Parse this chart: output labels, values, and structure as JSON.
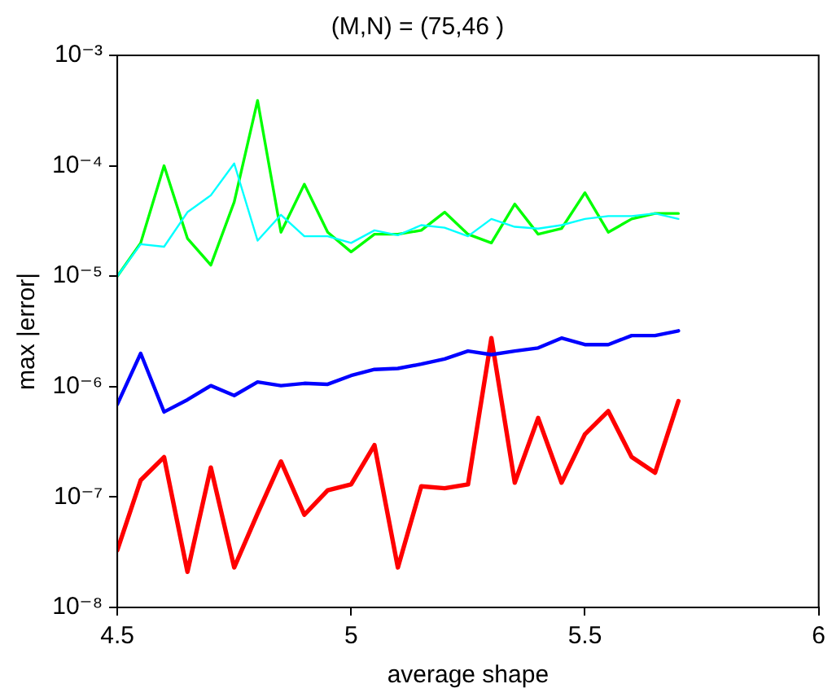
{
  "chart_data": {
    "type": "line",
    "title": "(M,N) = (75,46 )",
    "xlabel": "average shape",
    "ylabel": "max |error|",
    "log": "y",
    "x": [
      4.5,
      4.55,
      4.6,
      4.65,
      4.7,
      4.75,
      4.8,
      4.85,
      4.9,
      4.95,
      5.0,
      5.05,
      5.1,
      5.15,
      5.2,
      5.25,
      5.3,
      5.35,
      5.4,
      5.45,
      5.5,
      5.55,
      5.6,
      5.65,
      5.7
    ],
    "xlim": [
      4.5,
      6
    ],
    "xticks": [
      4.5,
      5,
      5.5,
      6
    ],
    "ylim": [
      1e-08,
      0.001
    ],
    "yticks": [
      {
        "value": 1e-08,
        "label": "10⁻⁸"
      },
      {
        "value": 1e-07,
        "label": "10⁻⁷"
      },
      {
        "value": 1e-06,
        "label": "10⁻⁶"
      },
      {
        "value": 1e-05,
        "label": "10⁻⁵"
      },
      {
        "value": 0.0001,
        "label": "10⁻⁴"
      },
      {
        "value": 0.001,
        "label": "10⁻³"
      }
    ],
    "marker": "none",
    "line_style": "solid",
    "legend": false,
    "series": [
      {
        "color": "#00ffff",
        "values": [
          1e-05,
          1.95e-05,
          1.85e-05,
          3.8e-05,
          5.4e-05,
          0.000105,
          2.1e-05,
          3.6e-05,
          2.3e-05,
          2.3e-05,
          2e-05,
          2.6e-05,
          2.35e-05,
          2.9e-05,
          2.75e-05,
          2.3e-05,
          3.3e-05,
          2.8e-05,
          2.7e-05,
          2.9e-05,
          3.3e-05,
          3.5e-05,
          3.5e-05,
          3.7e-05,
          3.3e-05
        ]
      },
      {
        "color": "#00ff00",
        "values": [
          1e-05,
          2e-05,
          0.0001,
          2.2e-05,
          1.26e-05,
          4.7e-05,
          0.00039,
          2.5e-05,
          6.8e-05,
          2.5e-05,
          1.66e-05,
          2.4e-05,
          2.4e-05,
          2.6e-05,
          3.8e-05,
          2.4e-05,
          2e-05,
          4.5e-05,
          2.4e-05,
          2.7e-05,
          5.7e-05,
          2.5e-05,
          3.3e-05,
          3.7e-05,
          3.7e-05
        ]
      },
      {
        "color": "#0000ff",
        "values": [
          6.9e-07,
          2e-06,
          5.9e-07,
          7.6e-07,
          1.02e-06,
          8.3e-07,
          1.1e-06,
          1.02e-06,
          1.07e-06,
          1.05e-06,
          1.26e-06,
          1.43e-06,
          1.46e-06,
          1.6e-06,
          1.78e-06,
          2.1e-06,
          1.95e-06,
          2.1e-06,
          2.24e-06,
          2.75e-06,
          2.4e-06,
          2.4e-06,
          2.9e-06,
          2.9e-06,
          3.2e-06
        ]
      },
      {
        "color": "#ff0000",
        "values": [
          3.3e-08,
          1.42e-07,
          2.3e-07,
          2.1e-08,
          1.85e-07,
          2.3e-08,
          7.1e-08,
          2.1e-07,
          6.9e-08,
          1.15e-07,
          1.3e-07,
          2.95e-07,
          2.3e-08,
          1.25e-07,
          1.2e-07,
          1.3e-07,
          2.75e-06,
          1.35e-07,
          5.2e-07,
          1.35e-07,
          3.7e-07,
          6e-07,
          2.3e-07,
          1.66e-07,
          7.4e-07
        ]
      }
    ]
  }
}
